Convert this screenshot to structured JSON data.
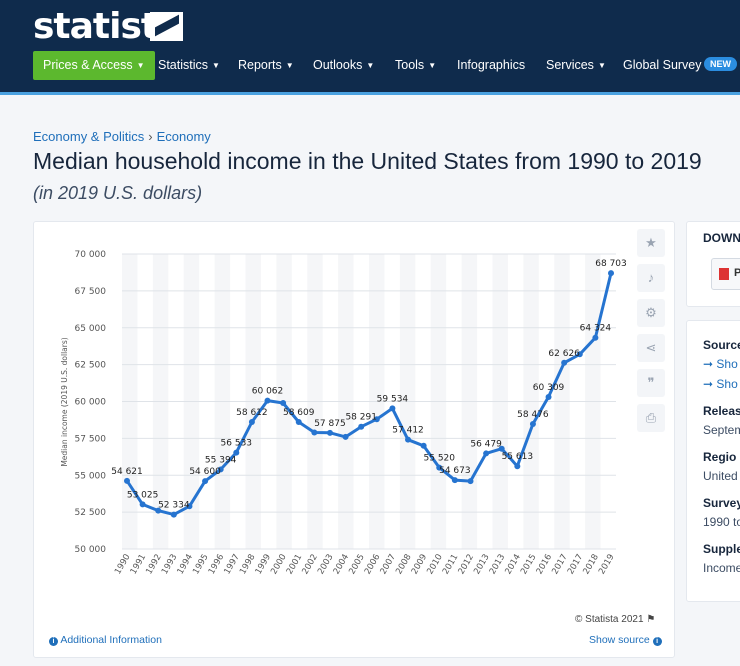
{
  "brand": {
    "logo_text": "statista"
  },
  "nav": {
    "primary": "Prices & Access",
    "items": [
      "Statistics",
      "Reports",
      "Outlooks",
      "Tools",
      "Infographics",
      "Services",
      "Global Survey"
    ],
    "badge": "NEW"
  },
  "breadcrumb": {
    "first": "Economy & Politics",
    "sep": "›",
    "second": "Economy"
  },
  "page": {
    "title": "Median household income in the United States from 1990 to 2019",
    "subtitle": "(in 2019 U.S. dollars)"
  },
  "chart_footer": {
    "credit": "© Statista 2021",
    "additional_info": "Additional Information",
    "show_source": "Show source"
  },
  "right_panel": {
    "download": "DOWN",
    "pdf": "P",
    "source_head": "Source",
    "source_link1": "Sho",
    "source_link2": "Sho",
    "release_head": "Releas",
    "release_val": "Septem",
    "region_head": "Regio",
    "region_val": "United",
    "survey_head": "Survey",
    "survey_val": "1990 to",
    "supple_head": "Supple",
    "supple_val": "Income"
  },
  "chart_data": {
    "type": "line",
    "title": "Median household income in the United States from 1990 to 2019",
    "subtitle": "(in 2019 U.S. dollars)",
    "xlabel": "",
    "ylabel": "Median income (2019 U.S. dollars)",
    "ylim": [
      50000,
      70000
    ],
    "yticks": [
      50000,
      52500,
      55000,
      57500,
      60000,
      62500,
      65000,
      67500,
      70000
    ],
    "ytick_labels": [
      "50 000",
      "52 500",
      "55 000",
      "57 500",
      "60 000",
      "62 500",
      "65 000",
      "67 500",
      "70 000"
    ],
    "x": [
      "1990",
      "1991",
      "1992",
      "1993",
      "1994",
      "1995",
      "1996",
      "1997",
      "1998",
      "1999",
      "2000",
      "2001",
      "2002",
      "2003",
      "2004",
      "2005",
      "2006",
      "2007",
      "2008",
      "2009",
      "2010",
      "2011",
      "2012",
      "2013",
      "2013",
      "2014",
      "2015",
      "2016",
      "2017",
      "2017",
      "2018",
      "2019"
    ],
    "values": [
      54621,
      53025,
      52600,
      52334,
      52900,
      54600,
      55394,
      56533,
      58612,
      60062,
      59900,
      58609,
      57900,
      57875,
      57600,
      58291,
      58800,
      59534,
      57412,
      57000,
      55520,
      54673,
      54600,
      56479,
      56800,
      55613,
      58476,
      60309,
      62626,
      63200,
      64324,
      68703
    ],
    "labels": [
      "54 621",
      "53 025",
      "",
      "52 334",
      "",
      "54 600",
      "55 394",
      "56 533",
      "58 612",
      "60 062",
      "",
      "58 609",
      "",
      "57 875",
      "",
      "58 291",
      "",
      "59 534",
      "57 412",
      "",
      "55 520",
      "54 673",
      "",
      "56 479",
      "",
      "55 613",
      "58 476",
      "60 309",
      "62 626",
      "",
      "64 324",
      "68 703"
    ],
    "grid": true,
    "color": "#2674d0"
  }
}
